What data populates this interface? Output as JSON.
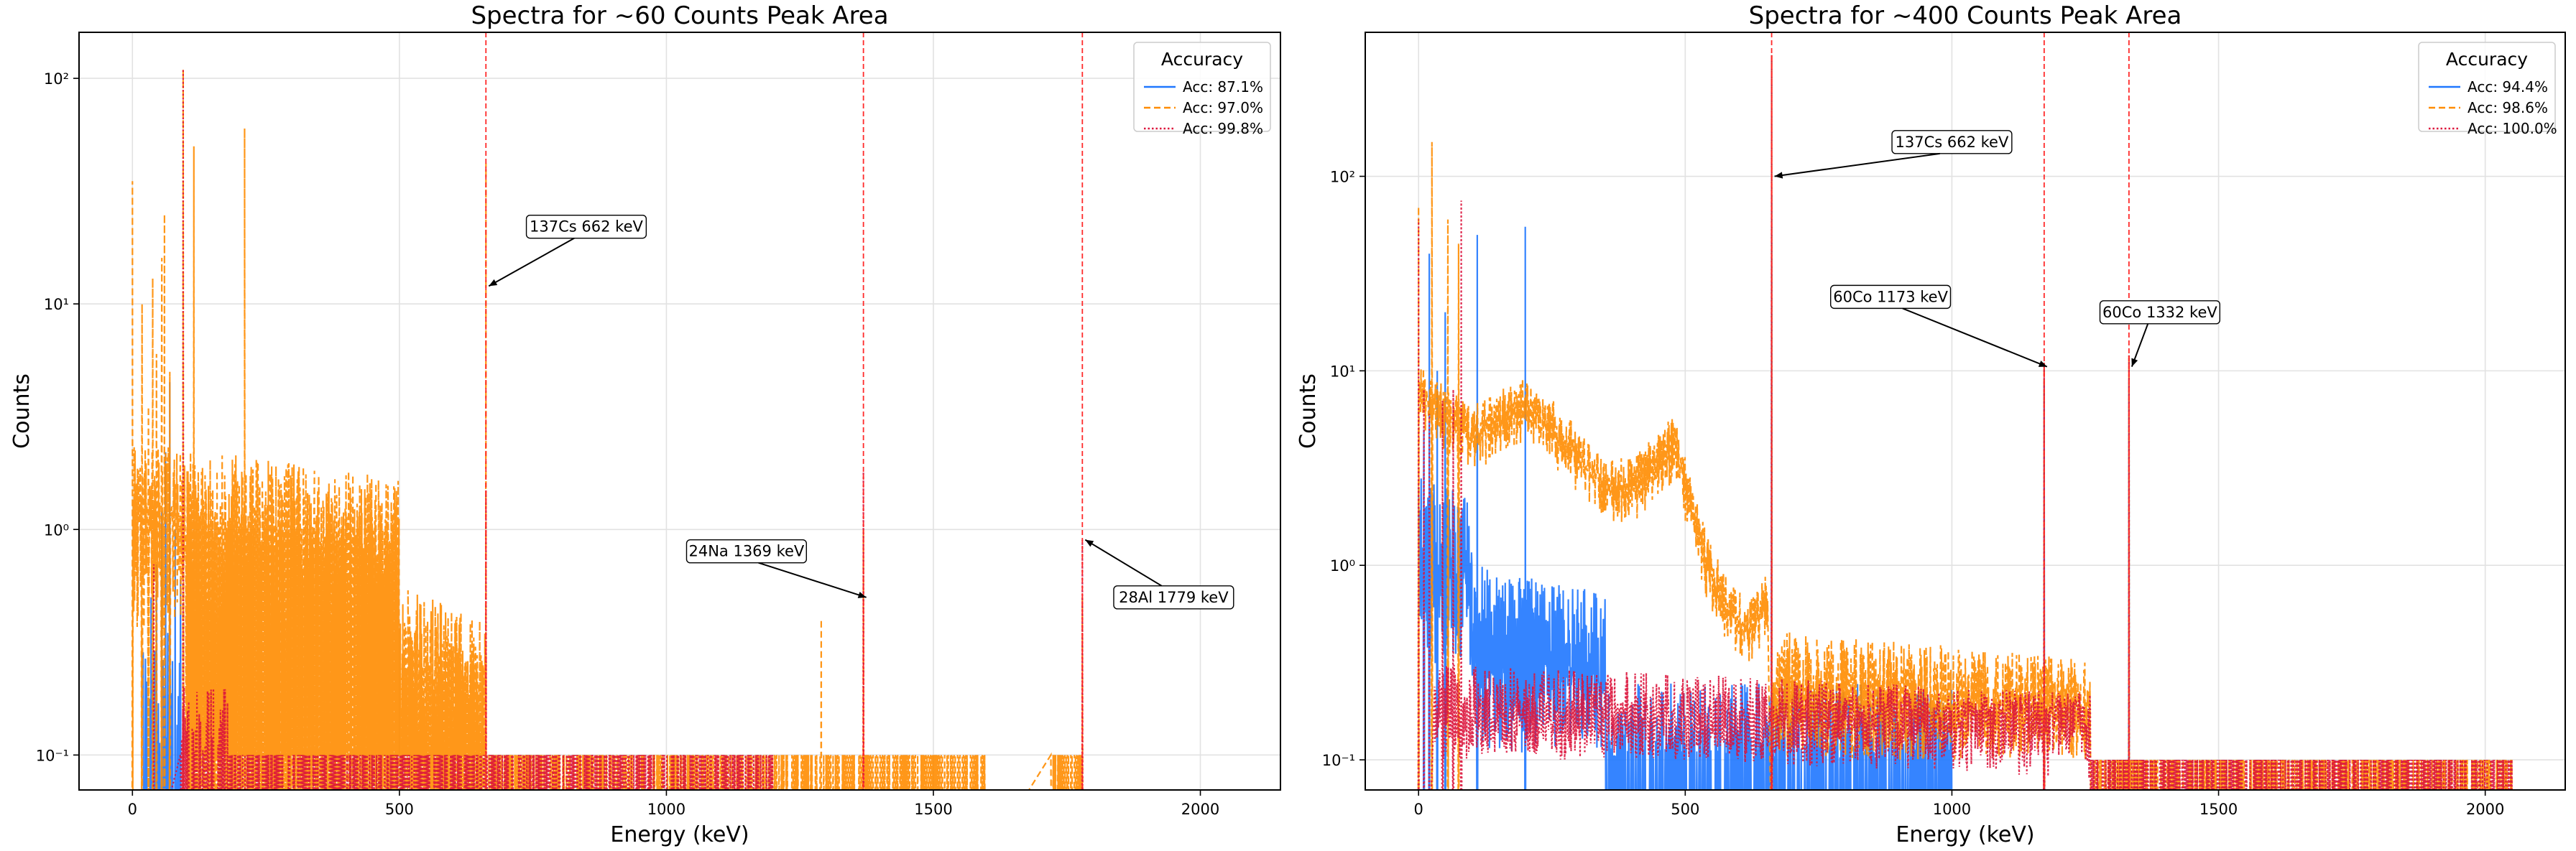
{
  "chart_data": [
    {
      "type": "line",
      "title": "Spectra for ~60 Counts Peak Area",
      "xlabel": "Energy (keV)",
      "ylabel": "Counts",
      "xlim": [
        -100,
        2150
      ],
      "ylim": [
        0.07,
        160
      ],
      "yscale": "log",
      "grid": true,
      "legend_position": "upper right",
      "x_ticks": [
        {
          "value": 0,
          "label": "0"
        },
        {
          "value": 500,
          "label": "500"
        },
        {
          "value": 1000,
          "label": "1000"
        },
        {
          "value": 1500,
          "label": "1500"
        },
        {
          "value": 2000,
          "label": "2000"
        }
      ],
      "y_ticks": [
        {
          "value": 0.1,
          "label": "10⁻¹"
        },
        {
          "value": 1,
          "label": "10⁰"
        },
        {
          "value": 10,
          "label": "10¹"
        },
        {
          "value": 100,
          "label": "10²"
        }
      ],
      "legend": {
        "title": "Accuracy",
        "entries": [
          "Acc: 87.1%",
          "Acc: 97.0%",
          "Acc: 99.8%"
        ]
      },
      "series": [
        {
          "name": "Acc: 87.1%",
          "color": "#1f77ff",
          "dash": "solid",
          "peaks": [
            [
              35,
              0.5
            ],
            [
              45,
              0.7
            ],
            [
              55,
              1.2
            ],
            [
              62,
              2.2
            ],
            [
              70,
              4.5
            ],
            [
              80,
              1.0
            ],
            [
              90,
              0.6
            ]
          ],
          "floor_ranges": [
            [
              20,
              90,
              0.1,
              0.35
            ]
          ]
        },
        {
          "name": "Acc: 97.0%",
          "color": "#ff8c00",
          "dash": "dashed",
          "peaks": [
            [
              0,
              35
            ],
            [
              18,
              10
            ],
            [
              30,
              3.5
            ],
            [
              38,
              13
            ],
            [
              45,
              6
            ],
            [
              55,
              16
            ],
            [
              60,
              25
            ],
            [
              70,
              5
            ],
            [
              95,
              110
            ],
            [
              115,
              50
            ],
            [
              210,
              60
            ],
            [
              370,
              0.5
            ],
            [
              662,
              42
            ],
            [
              1290,
              0.4
            ],
            [
              1369,
              1.0
            ],
            [
              1779,
              0.5
            ]
          ],
          "band_ranges": [
            [
              0,
              500,
              0.8,
              2.4,
              0.35,
              1.2
            ],
            [
              500,
              662,
              0.15,
              0.55,
              0.1,
              0.3
            ]
          ],
          "floor_ranges": [
            [
              100,
              1600,
              0.1,
              0.1
            ],
            [
              1720,
              1779,
              0.1,
              0.1
            ]
          ]
        },
        {
          "name": "Acc: 99.8%",
          "color": "#dc143c",
          "dash": "dotted",
          "peaks": [
            [
              40,
              0.7
            ],
            [
              95,
              110
            ],
            [
              662,
              1.5
            ],
            [
              1369,
              1.8
            ],
            [
              1779,
              0.9
            ]
          ],
          "floor_ranges": [
            [
              90,
              180,
              0.1,
              0.2
            ],
            [
              180,
              1200,
              0.1,
              0.1
            ]
          ]
        }
      ],
      "reference_lines": [
        662,
        1369,
        1779
      ],
      "annotations": [
        {
          "text": "137Cs 662 keV",
          "x": 662,
          "y": 12,
          "text_x": 850,
          "text_y": 22
        },
        {
          "text": "24Na 1369 keV",
          "x": 1369,
          "y": 0.5,
          "text_x": 1150,
          "text_y": 0.8
        },
        {
          "text": "28Al 1779 keV",
          "x": 1779,
          "y": 0.9,
          "text_x": 1950,
          "text_y": 0.5
        }
      ]
    },
    {
      "type": "line",
      "title": "Spectra for ~400 Counts Peak Area",
      "xlabel": "Energy (keV)",
      "ylabel": "Counts",
      "xlim": [
        -100,
        2150
      ],
      "ylim": [
        0.07,
        550
      ],
      "yscale": "log",
      "grid": true,
      "legend_position": "upper right",
      "x_ticks": [
        {
          "value": 0,
          "label": "0"
        },
        {
          "value": 500,
          "label": "500"
        },
        {
          "value": 1000,
          "label": "1000"
        },
        {
          "value": 1500,
          "label": "1500"
        },
        {
          "value": 2000,
          "label": "2000"
        }
      ],
      "y_ticks": [
        {
          "value": 0.1,
          "label": "10⁻¹"
        },
        {
          "value": 1,
          "label": "10⁰"
        },
        {
          "value": 10,
          "label": "10¹"
        },
        {
          "value": 100,
          "label": "10²"
        }
      ],
      "legend": {
        "title": "Accuracy",
        "entries": [
          "Acc: 94.4%",
          "Acc: 98.6%",
          "Acc: 100.0%"
        ]
      },
      "series": [
        {
          "name": "Acc: 94.4%",
          "color": "#1f77ff",
          "dash": "solid",
          "peaks": [
            [
              10,
              5
            ],
            [
              20,
              40
            ],
            [
              35,
              10
            ],
            [
              50,
              20
            ],
            [
              110,
              50
            ],
            [
              200,
              55
            ],
            [
              662,
              80
            ],
            [
              1173,
              9
            ],
            [
              1332,
              9
            ]
          ],
          "band_ranges": [
            [
              0,
              100,
              0.8,
              3.0,
              0.3,
              1.0
            ],
            [
              100,
              350,
              0.3,
              1.0,
              0.1,
              0.35
            ]
          ],
          "floor_ranges": [
            [
              350,
              1000,
              0.1,
              0.25
            ]
          ]
        },
        {
          "name": "Acc: 98.6%",
          "color": "#ff8c00",
          "dash": "dashed",
          "peaks": [
            [
              0,
              70
            ],
            [
              25,
              150
            ],
            [
              55,
              60
            ],
            [
              75,
              45
            ],
            [
              662,
              420
            ],
            [
              1173,
              11
            ],
            [
              1332,
              12
            ]
          ],
          "curve": [
            [
              0,
              9
            ],
            [
              50,
              7
            ],
            [
              100,
              5.5
            ],
            [
              150,
              6.5
            ],
            [
              200,
              8
            ],
            [
              250,
              6
            ],
            [
              300,
              4.2
            ],
            [
              350,
              3.0
            ],
            [
              400,
              3.0
            ],
            [
              450,
              4.0
            ],
            [
              480,
              5.0
            ],
            [
              500,
              3.0
            ],
            [
              540,
              1.2
            ],
            [
              580,
              0.7
            ],
            [
              620,
              0.55
            ],
            [
              655,
              0.8
            ]
          ],
          "band_ranges": [
            [
              662,
              1260,
              0.15,
              0.45,
              0.1,
              0.2
            ]
          ],
          "floor_ranges": [
            [
              1260,
              2050,
              0.1,
              0.1
            ]
          ]
        },
        {
          "name": "Acc: 100.0%",
          "color": "#dc143c",
          "dash": "dotted",
          "peaks": [
            [
              0,
              60
            ],
            [
              10,
              8
            ],
            [
              20,
              6
            ],
            [
              45,
              7
            ],
            [
              65,
              8
            ],
            [
              80,
              75
            ],
            [
              662,
              420
            ],
            [
              1173,
              11
            ],
            [
              1332,
              12
            ]
          ],
          "band_ranges": [
            [
              30,
              1260,
              0.1,
              0.3,
              0.1,
              0.2
            ]
          ],
          "floor_ranges": [
            [
              1260,
              2050,
              0.1,
              0.1
            ]
          ]
        }
      ],
      "reference_lines": [
        662,
        1173,
        1332
      ],
      "annotations": [
        {
          "text": "137Cs 662 keV",
          "x": 662,
          "y": 100,
          "text_x": 1000,
          "text_y": 150
        },
        {
          "text": "60Co 1173 keV",
          "x": 1173,
          "y": 10.5,
          "text_x": 885,
          "text_y": 24
        },
        {
          "text": "60Co 1332 keV",
          "x": 1332,
          "y": 10.5,
          "text_x": 1390,
          "text_y": 20
        }
      ]
    }
  ]
}
